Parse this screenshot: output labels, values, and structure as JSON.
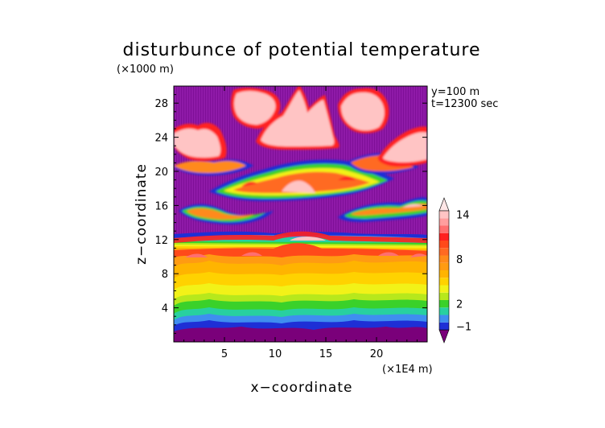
{
  "chart_data": {
    "type": "heatmap",
    "title": "disturbunce of potential temperature",
    "xlabel": "x−coordinate",
    "ylabel": "z−coordinate",
    "x_unit": "(×1E4 m)",
    "y_unit": "(×1000 m)",
    "annotations": [
      "y=100 m",
      "t=12300 sec"
    ],
    "xlim": [
      0,
      25
    ],
    "ylim": [
      0,
      30
    ],
    "x_ticks": [
      5,
      10,
      15,
      20
    ],
    "y_ticks": [
      4,
      8,
      12,
      16,
      20,
      24,
      28
    ],
    "grid": false,
    "colorbar": {
      "placement": "right",
      "labeled_ticks": [
        -1,
        2,
        8,
        14
      ],
      "levels": [
        {
          "value": -2,
          "color": "#7a007a"
        },
        {
          "value": -1,
          "color": "#1e2fd6"
        },
        {
          "value": 0,
          "color": "#3f8ef0"
        },
        {
          "value": 1,
          "color": "#28d0a0"
        },
        {
          "value": 2,
          "color": "#3ad12a"
        },
        {
          "value": 3,
          "color": "#b7e81c"
        },
        {
          "value": 4,
          "color": "#f2f218"
        },
        {
          "value": 5,
          "color": "#ffd200"
        },
        {
          "value": 6,
          "color": "#ffb400"
        },
        {
          "value": 7,
          "color": "#ff9b12"
        },
        {
          "value": 8,
          "color": "#ff8a1a"
        },
        {
          "value": 9,
          "color": "#ff6a22"
        },
        {
          "value": 10,
          "color": "#ff4a1a"
        },
        {
          "value": 11,
          "color": "#ff2020"
        },
        {
          "value": 12,
          "color": "#ff6f6f"
        },
        {
          "value": 13,
          "color": "#ff9e9e"
        },
        {
          "value": 14,
          "color": "#ffc4c4"
        },
        {
          "value": 15,
          "color": "#ffe6e6"
        }
      ]
    },
    "background_value": -2,
    "regions": [
      {
        "name": "lower-band",
        "x": [
          0,
          25
        ],
        "z": [
          0,
          12.5
        ],
        "approx_value": 7
      },
      {
        "name": "upper-cloud-1",
        "x": [
          7,
          11
        ],
        "z": [
          23.5,
          30
        ],
        "approx_value": 14
      },
      {
        "name": "upper-cloud-2",
        "x": [
          12,
          16
        ],
        "z": [
          23,
          30
        ],
        "approx_value": 14
      },
      {
        "name": "upper-cloud-3",
        "x": [
          19,
          25
        ],
        "z": [
          22,
          29
        ],
        "approx_value": 13
      },
      {
        "name": "mid-layer",
        "x": [
          0,
          25
        ],
        "z": [
          14,
          24
        ],
        "approx_value": 8
      }
    ]
  }
}
